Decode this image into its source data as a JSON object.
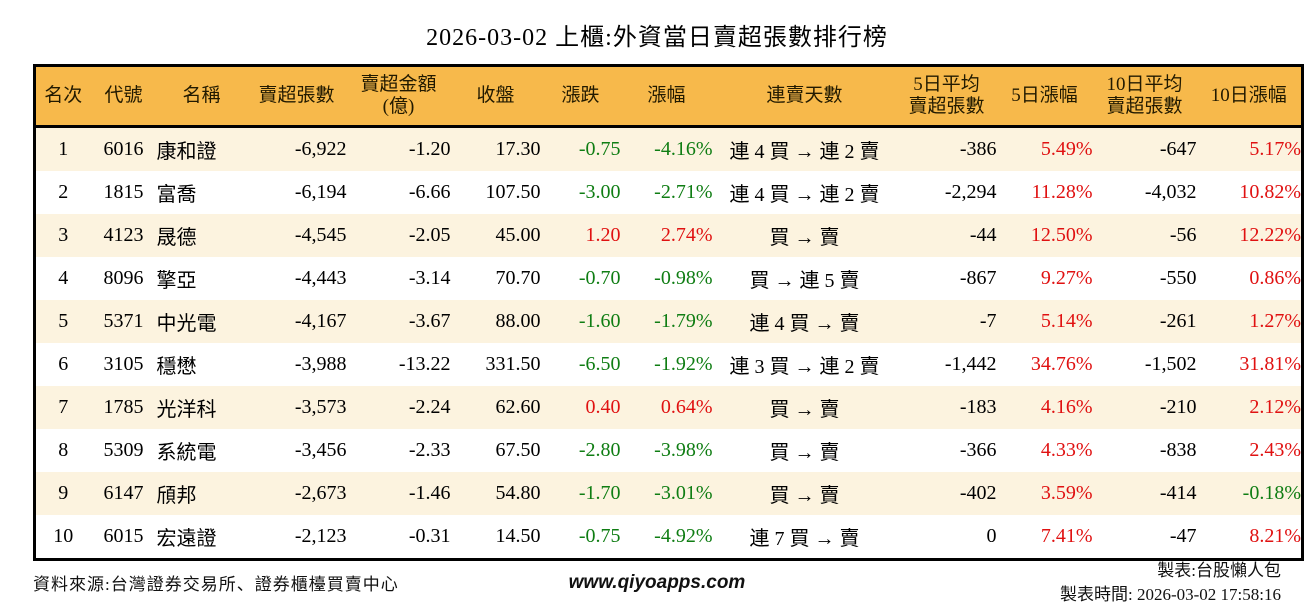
{
  "page": {
    "title": "2026-03-02 上櫃:外資當日賣超張數排行榜"
  },
  "colors": {
    "header_bg": "#F7B94B",
    "row_alt_bg": "#FCF3DF",
    "row_bg": "#FFFFFF",
    "up_red": "#E01111",
    "down_green": "#0F7D13",
    "border": "#000000"
  },
  "chart_data": {
    "type": "table",
    "title": "2026-03-02 上櫃:外資當日賣超張數排行榜",
    "columns": [
      "名次",
      "代號",
      "名稱",
      "賣超張數",
      "賣超金額\n(億)",
      "收盤",
      "漲跌",
      "漲幅",
      "連賣天數",
      "5日平均\n賣超張數",
      "5日漲幅",
      "10日平均\n賣超張數",
      "10日漲幅"
    ],
    "rows": [
      {
        "cells": [
          "1",
          "6016",
          "康和證",
          "-6,922",
          "-1.20",
          "17.30",
          "-0.75",
          "-4.16%",
          "連 4 買 → 連 2 賣",
          "-386",
          "5.49%",
          "-647",
          "5.17%"
        ],
        "colors": [
          "",
          "",
          "",
          "",
          "",
          "",
          "green",
          "green",
          "",
          "",
          "red",
          "",
          "red"
        ]
      },
      {
        "cells": [
          "2",
          "1815",
          "富喬",
          "-6,194",
          "-6.66",
          "107.50",
          "-3.00",
          "-2.71%",
          "連 4 買 → 連 2 賣",
          "-2,294",
          "11.28%",
          "-4,032",
          "10.82%"
        ],
        "colors": [
          "",
          "",
          "",
          "",
          "",
          "",
          "green",
          "green",
          "",
          "",
          "red",
          "",
          "red"
        ]
      },
      {
        "cells": [
          "3",
          "4123",
          "晟德",
          "-4,545",
          "-2.05",
          "45.00",
          "1.20",
          "2.74%",
          "買 → 賣",
          "-44",
          "12.50%",
          "-56",
          "12.22%"
        ],
        "colors": [
          "",
          "",
          "",
          "",
          "",
          "",
          "red",
          "red",
          "",
          "",
          "red",
          "",
          "red"
        ]
      },
      {
        "cells": [
          "4",
          "8096",
          "擎亞",
          "-4,443",
          "-3.14",
          "70.70",
          "-0.70",
          "-0.98%",
          "買 → 連 5 賣",
          "-867",
          "9.27%",
          "-550",
          "0.86%"
        ],
        "colors": [
          "",
          "",
          "",
          "",
          "",
          "",
          "green",
          "green",
          "",
          "",
          "red",
          "",
          "red"
        ]
      },
      {
        "cells": [
          "5",
          "5371",
          "中光電",
          "-4,167",
          "-3.67",
          "88.00",
          "-1.60",
          "-1.79%",
          "連 4 買 → 賣",
          "-7",
          "5.14%",
          "-261",
          "1.27%"
        ],
        "colors": [
          "",
          "",
          "",
          "",
          "",
          "",
          "green",
          "green",
          "",
          "",
          "red",
          "",
          "red"
        ]
      },
      {
        "cells": [
          "6",
          "3105",
          "穩懋",
          "-3,988",
          "-13.22",
          "331.50",
          "-6.50",
          "-1.92%",
          "連 3 買 → 連 2 賣",
          "-1,442",
          "34.76%",
          "-1,502",
          "31.81%"
        ],
        "colors": [
          "",
          "",
          "",
          "",
          "",
          "",
          "green",
          "green",
          "",
          "",
          "red",
          "",
          "red"
        ]
      },
      {
        "cells": [
          "7",
          "1785",
          "光洋科",
          "-3,573",
          "-2.24",
          "62.60",
          "0.40",
          "0.64%",
          "買 → 賣",
          "-183",
          "4.16%",
          "-210",
          "2.12%"
        ],
        "colors": [
          "",
          "",
          "",
          "",
          "",
          "",
          "red",
          "red",
          "",
          "",
          "red",
          "",
          "red"
        ]
      },
      {
        "cells": [
          "8",
          "5309",
          "系統電",
          "-3,456",
          "-2.33",
          "67.50",
          "-2.80",
          "-3.98%",
          "買 → 賣",
          "-366",
          "4.33%",
          "-838",
          "2.43%"
        ],
        "colors": [
          "",
          "",
          "",
          "",
          "",
          "",
          "green",
          "green",
          "",
          "",
          "red",
          "",
          "red"
        ]
      },
      {
        "cells": [
          "9",
          "6147",
          "頎邦",
          "-2,673",
          "-1.46",
          "54.80",
          "-1.70",
          "-3.01%",
          "買 → 賣",
          "-402",
          "3.59%",
          "-414",
          "-0.18%"
        ],
        "colors": [
          "",
          "",
          "",
          "",
          "",
          "",
          "green",
          "green",
          "",
          "",
          "red",
          "",
          "green"
        ]
      },
      {
        "cells": [
          "10",
          "6015",
          "宏遠證",
          "-2,123",
          "-0.31",
          "14.50",
          "-0.75",
          "-4.92%",
          "連 7 買 → 賣",
          "0",
          "7.41%",
          "-47",
          "8.21%"
        ],
        "colors": [
          "",
          "",
          "",
          "",
          "",
          "",
          "green",
          "green",
          "",
          "",
          "red",
          "",
          "red"
        ]
      }
    ]
  },
  "footer": {
    "source": "資料來源:台灣證券交易所、證券櫃檯買賣中心",
    "website": "www.qiyoapps.com",
    "author": "製表:台股懶人包",
    "generated_at": "製表時間: 2026-03-02 17:58:16"
  }
}
